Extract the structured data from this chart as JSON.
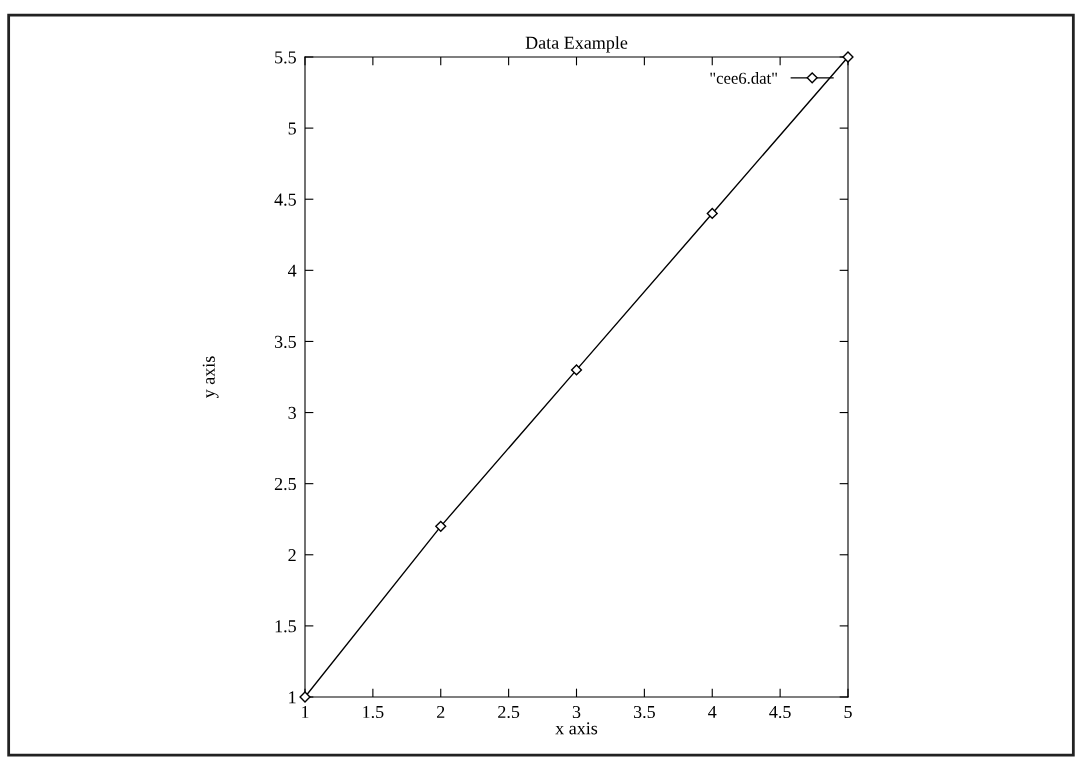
{
  "chart_data": {
    "type": "line",
    "title": "Data Example",
    "xlabel": "x axis",
    "ylabel": "y axis",
    "x": [
      1,
      2,
      3,
      4,
      5
    ],
    "series": [
      {
        "name": "\"cee6.dat\"",
        "color": "#000000",
        "values": [
          1,
          2.2,
          3.3,
          4.4,
          5.5
        ]
      }
    ],
    "xlim": [
      1,
      5
    ],
    "ylim": [
      1,
      5.5
    ],
    "xticks": [
      1,
      1.5,
      2,
      2.5,
      3,
      3.5,
      4,
      4.5,
      5
    ],
    "yticks": [
      1,
      1.5,
      2,
      2.5,
      3,
      3.5,
      4,
      4.5,
      5,
      5.5
    ],
    "marker": "diamond",
    "line_style": "solid",
    "legend": "top right",
    "grid": false
  }
}
